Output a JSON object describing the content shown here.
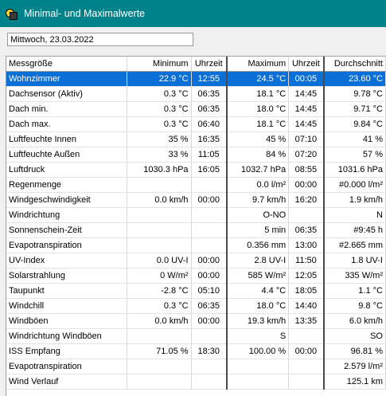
{
  "window": {
    "title": "Minimal- und Maximalwerte"
  },
  "date": "Mittwoch, 23.03.2022",
  "table": {
    "headers": [
      "Messgröße",
      "Minimum",
      "Uhrzeit",
      "Maximum",
      "Uhrzeit",
      "Durchschnitt"
    ],
    "selected_row": 0,
    "rows": [
      [
        "Wohnzimmer",
        "22.9 °C",
        "12:55",
        "24.5 °C",
        "00:05",
        "23.60 °C"
      ],
      [
        "Dachsensor (Aktiv)",
        "0.3 °C",
        "06:35",
        "18.1 °C",
        "14:45",
        "9.78 °C"
      ],
      [
        "Dach min.",
        "0.3 °C",
        "06:35",
        "18.0 °C",
        "14:45",
        "9.71 °C"
      ],
      [
        "Dach max.",
        "0.3 °C",
        "06:40",
        "18.1 °C",
        "14:45",
        "9.84 °C"
      ],
      [
        "Luftfeuchte Innen",
        "35 %",
        "16:35",
        "45 %",
        "07:10",
        "41 %"
      ],
      [
        "Luftfeuchte Außen",
        "33 %",
        "11:05",
        "84 %",
        "07:20",
        "57 %"
      ],
      [
        "Luftdruck",
        "1030.3 hPa",
        "16:05",
        "1032.7 hPa",
        "08:55",
        "1031.6 hPa"
      ],
      [
        "Regenmenge",
        "",
        "",
        "0.0 l/m²",
        "00:00",
        "#0.000 l/m²"
      ],
      [
        "Windgeschwindigkeit",
        "0.0 km/h",
        "00:00",
        "9.7 km/h",
        "16:20",
        "1.9 km/h"
      ],
      [
        "Windrichtung",
        "",
        "",
        "O-NO",
        "",
        "N"
      ],
      [
        "Sonnenschein-Zeit",
        "",
        "",
        "5 min",
        "06:35",
        "#9:45 h"
      ],
      [
        "Evapotranspiration",
        "",
        "",
        "0.356 mm",
        "13:00",
        "#2.665 mm"
      ],
      [
        "UV-Index",
        "0.0 UV-I",
        "00:00",
        "2.8 UV-I",
        "11:50",
        "1.8 UV-I"
      ],
      [
        "Solarstrahlung",
        "0 W/m²",
        "00:00",
        "585 W/m²",
        "12:05",
        "335 W/m²"
      ],
      [
        "Taupunkt",
        "-2.8 °C",
        "05:10",
        "4.4 °C",
        "18:05",
        "1.1 °C"
      ],
      [
        "Windchill",
        "0.3 °C",
        "06:35",
        "18.0 °C",
        "14:40",
        "9.8 °C"
      ],
      [
        "Windböen",
        "0.0 km/h",
        "00:00",
        "19.3 km/h",
        "13:35",
        "6.0 km/h"
      ],
      [
        "Windrichtung Windböen",
        "",
        "",
        "S",
        "",
        "SO"
      ],
      [
        "ISS Empfang",
        "71.05 %",
        "18:30",
        "100.00 %",
        "00:00",
        "96.81 %"
      ],
      [
        "Evapotranspiration",
        "",
        "",
        "",
        "",
        "2.579 l/m²"
      ],
      [
        "Wind Verlauf",
        "",
        "",
        "",
        "",
        "125.1 km"
      ]
    ]
  },
  "colors": {
    "titlebar": "#00828a",
    "selection": "#0a6fd6"
  },
  "icons": {
    "app": "app-icon"
  }
}
